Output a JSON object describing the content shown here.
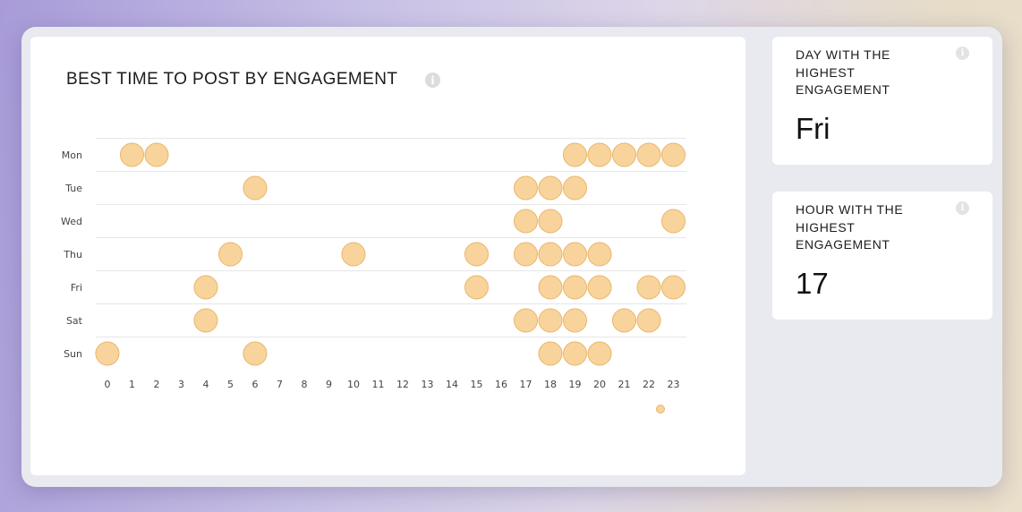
{
  "chart_data": {
    "type": "scatter",
    "title": "BEST TIME TO POST BY ENGAGEMENT",
    "y_categories": [
      "Mon",
      "Tue",
      "Wed",
      "Thu",
      "Fri",
      "Sat",
      "Sun"
    ],
    "x_ticks": [
      "0",
      "1",
      "2",
      "3",
      "4",
      "5",
      "6",
      "7",
      "8",
      "9",
      "10",
      "11",
      "12",
      "13",
      "14",
      "15",
      "16",
      "17",
      "18",
      "19",
      "20",
      "21",
      "22",
      "23"
    ],
    "grid": "horizontal",
    "points": [
      {
        "day": "Mon",
        "hour": 1
      },
      {
        "day": "Mon",
        "hour": 2
      },
      {
        "day": "Mon",
        "hour": 19
      },
      {
        "day": "Mon",
        "hour": 20
      },
      {
        "day": "Mon",
        "hour": 21
      },
      {
        "day": "Mon",
        "hour": 22
      },
      {
        "day": "Mon",
        "hour": 23
      },
      {
        "day": "Tue",
        "hour": 6
      },
      {
        "day": "Tue",
        "hour": 17
      },
      {
        "day": "Tue",
        "hour": 18
      },
      {
        "day": "Tue",
        "hour": 19
      },
      {
        "day": "Wed",
        "hour": 17
      },
      {
        "day": "Wed",
        "hour": 18
      },
      {
        "day": "Wed",
        "hour": 23
      },
      {
        "day": "Thu",
        "hour": 5
      },
      {
        "day": "Thu",
        "hour": 10
      },
      {
        "day": "Thu",
        "hour": 15
      },
      {
        "day": "Thu",
        "hour": 17
      },
      {
        "day": "Thu",
        "hour": 18
      },
      {
        "day": "Thu",
        "hour": 19
      },
      {
        "day": "Thu",
        "hour": 20
      },
      {
        "day": "Fri",
        "hour": 4
      },
      {
        "day": "Fri",
        "hour": 15
      },
      {
        "day": "Fri",
        "hour": 18
      },
      {
        "day": "Fri",
        "hour": 19
      },
      {
        "day": "Fri",
        "hour": 20
      },
      {
        "day": "Fri",
        "hour": 22
      },
      {
        "day": "Fri",
        "hour": 23
      },
      {
        "day": "Sat",
        "hour": 4
      },
      {
        "day": "Sat",
        "hour": 17
      },
      {
        "day": "Sat",
        "hour": 18
      },
      {
        "day": "Sat",
        "hour": 19
      },
      {
        "day": "Sat",
        "hour": 21
      },
      {
        "day": "Sat",
        "hour": 22
      },
      {
        "day": "Sun",
        "hour": 0
      },
      {
        "day": "Sun",
        "hour": 6
      },
      {
        "day": "Sun",
        "hour": 18
      },
      {
        "day": "Sun",
        "hour": 19
      },
      {
        "day": "Sun",
        "hour": 20
      }
    ],
    "marker_color": "#f8d49c",
    "marker_stroke": "#e9b46a",
    "gridline_color": "#e6e6e6"
  },
  "stats": {
    "day": {
      "label": "DAY WITH THE HIGHEST ENGAGEMENT",
      "value": "Fri"
    },
    "hour": {
      "label": "HOUR WITH THE HIGHEST ENGAGEMENT",
      "value": "17"
    }
  },
  "icons": {
    "info": "i"
  }
}
